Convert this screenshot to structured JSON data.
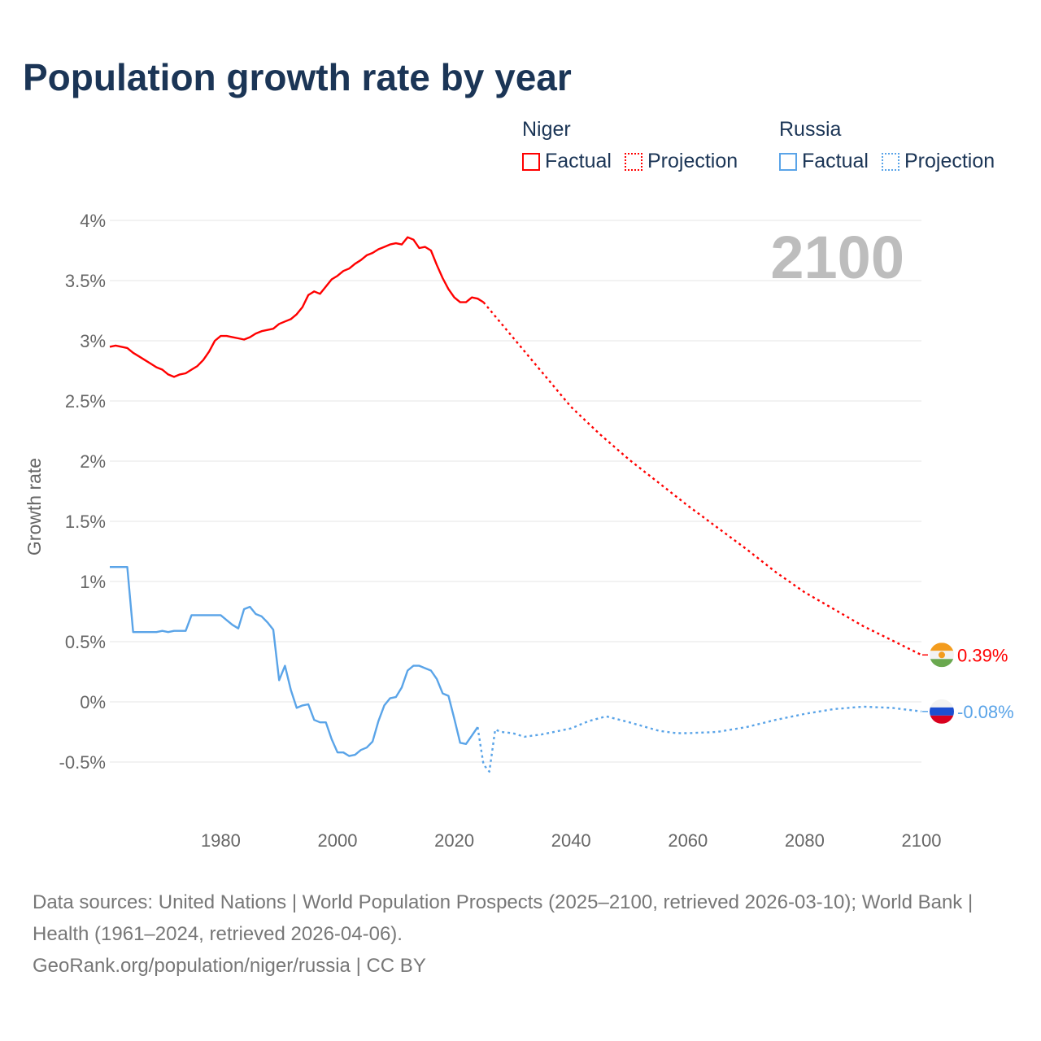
{
  "title": "Population growth rate by year",
  "legend": {
    "groups": [
      {
        "name": "Niger",
        "factual": "Factual",
        "projection": "Projection",
        "color": "#ff0000"
      },
      {
        "name": "Russia",
        "factual": "Factual",
        "projection": "Projection",
        "color": "#5aa4e8"
      }
    ]
  },
  "year_watermark": "2100",
  "footer": {
    "sources": "Data sources: United Nations | World Population Prospects (2025–2100, retrieved 2026-03-10); World Bank | Health (1961–2024, retrieved 2026-04-06).",
    "credit": "GeoRank.org/population/niger/russia | CC BY"
  },
  "chart_data": {
    "type": "line",
    "title": "Population growth rate by year",
    "xlabel": "",
    "ylabel": "Growth rate",
    "xlim": [
      1961,
      2100
    ],
    "ylim": [
      -0.8,
      4.1
    ],
    "grid": true,
    "x_ticks": [
      1980,
      2000,
      2020,
      2040,
      2060,
      2080,
      2100
    ],
    "y_ticks": [
      -0.5,
      0,
      0.5,
      1,
      1.5,
      2,
      2.5,
      3,
      3.5,
      4
    ],
    "y_tick_labels": [
      "-0.5%",
      "0%",
      "0.5%",
      "1%",
      "1.5%",
      "2%",
      "2.5%",
      "3%",
      "3.5%",
      "4%"
    ],
    "series": [
      {
        "name": "Niger",
        "type": "factual",
        "color": "#ff0000",
        "x": [
          1961,
          1962,
          1963,
          1964,
          1965,
          1966,
          1967,
          1968,
          1969,
          1970,
          1971,
          1972,
          1973,
          1974,
          1975,
          1976,
          1977,
          1978,
          1979,
          1980,
          1981,
          1982,
          1983,
          1984,
          1985,
          1986,
          1987,
          1988,
          1989,
          1990,
          1991,
          1992,
          1993,
          1994,
          1995,
          1996,
          1997,
          1998,
          1999,
          2000,
          2001,
          2002,
          2003,
          2004,
          2005,
          2006,
          2007,
          2008,
          2009,
          2010,
          2011,
          2012,
          2013,
          2014,
          2015,
          2016,
          2017,
          2018,
          2019,
          2020,
          2021,
          2022,
          2023,
          2024,
          2025
        ],
        "y": [
          2.95,
          2.96,
          2.95,
          2.94,
          2.9,
          2.87,
          2.84,
          2.81,
          2.78,
          2.76,
          2.72,
          2.7,
          2.72,
          2.73,
          2.76,
          2.79,
          2.84,
          2.91,
          3.0,
          3.04,
          3.04,
          3.03,
          3.02,
          3.01,
          3.03,
          3.06,
          3.08,
          3.09,
          3.1,
          3.14,
          3.16,
          3.18,
          3.22,
          3.28,
          3.38,
          3.41,
          3.39,
          3.45,
          3.51,
          3.54,
          3.58,
          3.6,
          3.64,
          3.67,
          3.71,
          3.73,
          3.76,
          3.78,
          3.8,
          3.81,
          3.8,
          3.86,
          3.84,
          3.77,
          3.78,
          3.75,
          3.63,
          3.52,
          3.43,
          3.36,
          3.32,
          3.32,
          3.36,
          3.35,
          3.32
        ]
      },
      {
        "name": "Niger",
        "type": "projection",
        "color": "#ff0000",
        "x": [
          2025,
          2030,
          2035,
          2040,
          2045,
          2050,
          2055,
          2060,
          2065,
          2070,
          2075,
          2080,
          2085,
          2090,
          2095,
          2100
        ],
        "y": [
          3.32,
          3.03,
          2.74,
          2.45,
          2.22,
          2.01,
          1.82,
          1.63,
          1.45,
          1.27,
          1.08,
          0.91,
          0.77,
          0.63,
          0.51,
          0.39
        ]
      },
      {
        "name": "Russia",
        "type": "factual",
        "color": "#5aa4e8",
        "x": [
          1961,
          1962,
          1963,
          1964,
          1965,
          1966,
          1967,
          1968,
          1969,
          1970,
          1971,
          1972,
          1973,
          1974,
          1975,
          1976,
          1977,
          1978,
          1979,
          1980,
          1981,
          1982,
          1983,
          1984,
          1985,
          1986,
          1987,
          1988,
          1989,
          1990,
          1991,
          1992,
          1993,
          1994,
          1995,
          1996,
          1997,
          1998,
          1999,
          2000,
          2001,
          2002,
          2003,
          2004,
          2005,
          2006,
          2007,
          2008,
          2009,
          2010,
          2011,
          2012,
          2013,
          2014,
          2015,
          2016,
          2017,
          2018,
          2019,
          2020,
          2021,
          2022,
          2023,
          2024
        ],
        "y": [
          1.12,
          1.12,
          1.12,
          1.12,
          0.58,
          0.58,
          0.58,
          0.58,
          0.58,
          0.59,
          0.58,
          0.59,
          0.59,
          0.59,
          0.72,
          0.72,
          0.72,
          0.72,
          0.72,
          0.72,
          0.68,
          0.64,
          0.61,
          0.77,
          0.79,
          0.73,
          0.71,
          0.66,
          0.6,
          0.18,
          0.3,
          0.1,
          -0.05,
          -0.03,
          -0.02,
          -0.15,
          -0.17,
          -0.17,
          -0.31,
          -0.42,
          -0.42,
          -0.45,
          -0.44,
          -0.4,
          -0.38,
          -0.33,
          -0.16,
          -0.03,
          0.03,
          0.04,
          0.12,
          0.26,
          0.3,
          0.3,
          0.28,
          0.26,
          0.19,
          0.07,
          0.05,
          -0.14,
          -0.34,
          -0.35,
          -0.28,
          -0.21
        ]
      },
      {
        "name": "Russia",
        "type": "projection",
        "color": "#5aa4e8",
        "x": [
          2024,
          2025,
          2026,
          2027,
          2028,
          2030,
          2032,
          2035,
          2040,
          2043,
          2046,
          2050,
          2055,
          2058,
          2060,
          2065,
          2070,
          2075,
          2080,
          2085,
          2090,
          2095,
          2100
        ],
        "y": [
          -0.21,
          -0.52,
          -0.58,
          -0.23,
          -0.25,
          -0.26,
          -0.29,
          -0.27,
          -0.22,
          -0.16,
          -0.12,
          -0.17,
          -0.24,
          -0.26,
          -0.26,
          -0.25,
          -0.21,
          -0.15,
          -0.1,
          -0.06,
          -0.04,
          -0.05,
          -0.08
        ]
      }
    ],
    "end_labels": [
      {
        "country": "Niger",
        "value": "0.39%",
        "y": 0.39,
        "color": "#ff0000"
      },
      {
        "country": "Russia",
        "value": "-0.08%",
        "y": -0.08,
        "color": "#5aa4e8"
      }
    ]
  }
}
